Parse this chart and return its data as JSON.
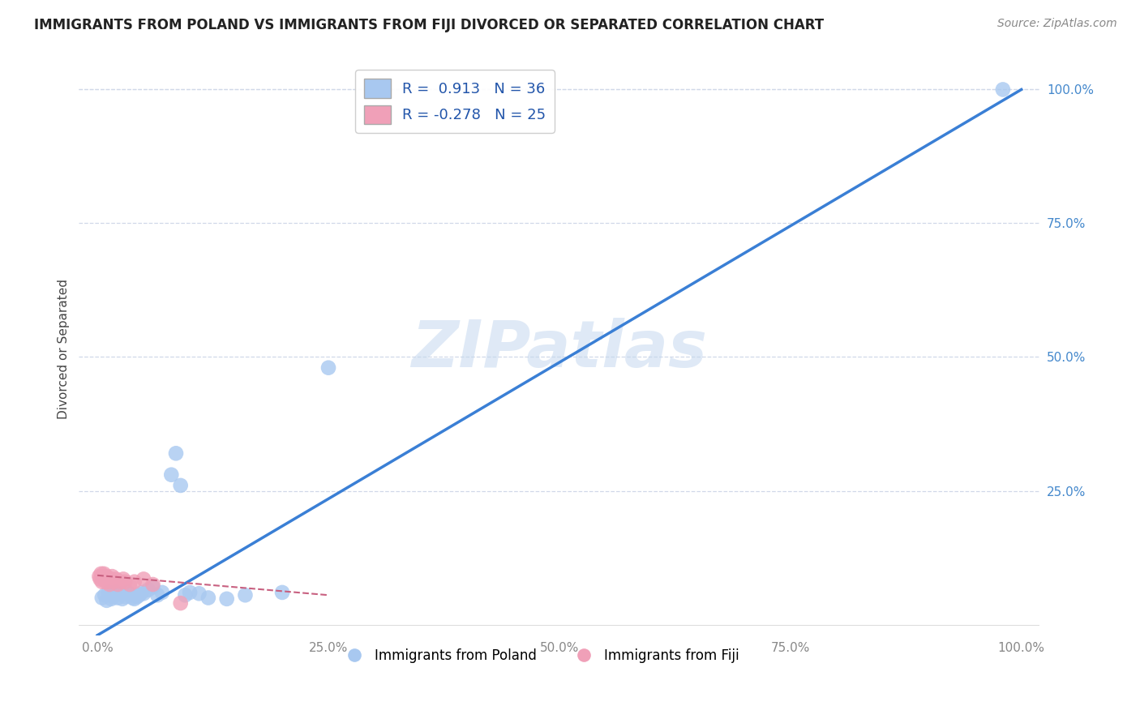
{
  "title": "IMMIGRANTS FROM POLAND VS IMMIGRANTS FROM FIJI DIVORCED OR SEPARATED CORRELATION CHART",
  "source": "Source: ZipAtlas.com",
  "ylabel": "Divorced or Separated",
  "legend_label1": "Immigrants from Poland",
  "legend_label2": "Immigrants from Fiji",
  "R1": 0.913,
  "N1": 36,
  "R2": -0.278,
  "N2": 25,
  "color_poland": "#a8c8f0",
  "color_fiji": "#f0a0b8",
  "line_color_poland": "#3a7fd5",
  "line_color_fiji": "#c86080",
  "background": "#ffffff",
  "watermark": "ZIPatlas",
  "poland_x": [
    0.005,
    0.008,
    0.01,
    0.012,
    0.015,
    0.017,
    0.018,
    0.02,
    0.022,
    0.025,
    0.027,
    0.03,
    0.033,
    0.035,
    0.038,
    0.04,
    0.043,
    0.045,
    0.048,
    0.05,
    0.055,
    0.06,
    0.065,
    0.07,
    0.08,
    0.085,
    0.09,
    0.095,
    0.1,
    0.11,
    0.12,
    0.14,
    0.16,
    0.2,
    0.25,
    0.98
  ],
  "poland_y": [
    0.05,
    0.055,
    0.045,
    0.06,
    0.048,
    0.052,
    0.055,
    0.06,
    0.05,
    0.058,
    0.048,
    0.052,
    0.06,
    0.055,
    0.05,
    0.048,
    0.052,
    0.055,
    0.06,
    0.058,
    0.065,
    0.07,
    0.055,
    0.06,
    0.28,
    0.32,
    0.26,
    0.055,
    0.06,
    0.058,
    0.05,
    0.048,
    0.055,
    0.06,
    0.48,
    1.0
  ],
  "fiji_x": [
    0.002,
    0.003,
    0.004,
    0.005,
    0.006,
    0.007,
    0.008,
    0.009,
    0.01,
    0.011,
    0.012,
    0.013,
    0.015,
    0.016,
    0.018,
    0.02,
    0.022,
    0.025,
    0.028,
    0.03,
    0.035,
    0.04,
    0.05,
    0.06,
    0.09
  ],
  "fiji_y": [
    0.09,
    0.085,
    0.095,
    0.08,
    0.09,
    0.095,
    0.085,
    0.08,
    0.09,
    0.085,
    0.08,
    0.075,
    0.085,
    0.09,
    0.08,
    0.085,
    0.075,
    0.08,
    0.085,
    0.08,
    0.075,
    0.08,
    0.085,
    0.075,
    0.04
  ],
  "xlim": [
    -0.02,
    1.02
  ],
  "ylim": [
    -0.02,
    1.05
  ],
  "xticks": [
    0.0,
    0.25,
    0.5,
    0.75,
    1.0
  ],
  "xticklabels": [
    "0.0%",
    "25.0%",
    "50.0%",
    "75.0%",
    "100.0%"
  ],
  "yticks": [
    0.25,
    0.5,
    0.75,
    1.0
  ],
  "yticklabels": [
    "25.0%",
    "50.0%",
    "75.0%",
    "100.0%"
  ],
  "grid_color": "#d0d8e8",
  "title_fontsize": 12,
  "tick_fontsize": 11,
  "legend_fontsize": 13
}
